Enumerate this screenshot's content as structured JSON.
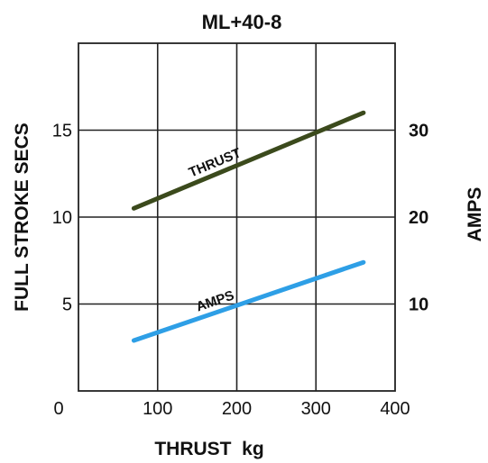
{
  "chart_data": {
    "type": "line",
    "title": "ML+40-8",
    "xlabel": "THRUST  kg",
    "ylabel": "FULL STROKE SECS",
    "y2label": "AMPS",
    "xlim": [
      0,
      400
    ],
    "ylim": [
      0,
      20
    ],
    "y2lim": [
      0,
      40
    ],
    "x_ticks": [
      "0",
      "100",
      "200",
      "300",
      "400"
    ],
    "y_ticks": [
      "5",
      "10",
      "15"
    ],
    "y2_ticks": [
      "10",
      "20",
      "30"
    ],
    "grid": true,
    "series": [
      {
        "name": "THRUST",
        "axis": "left",
        "color": "#3b4a1c",
        "x": [
          70,
          360
        ],
        "y": [
          10.5,
          16.0
        ]
      },
      {
        "name": "AMPS",
        "axis": "right",
        "color": "#2e9fe6",
        "x": [
          70,
          360
        ],
        "y": [
          5.8,
          14.8
        ]
      }
    ]
  }
}
